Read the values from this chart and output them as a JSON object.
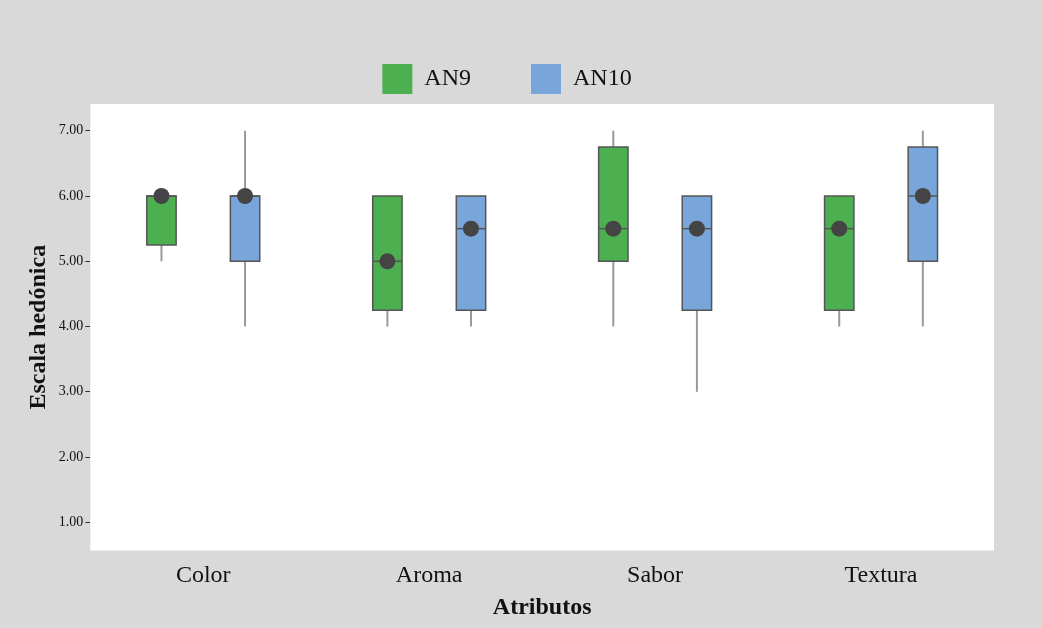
{
  "chart_data": {
    "type": "box",
    "xlabel": "Atributos",
    "ylabel": "Escala hedónica",
    "categories": [
      "Color",
      "Aroma",
      "Sabor",
      "Textura"
    ],
    "ylim": [
      0.57,
      7.41
    ],
    "yticks": [
      {
        "value": 1,
        "label": "1.00"
      },
      {
        "value": 2,
        "label": "2.00"
      },
      {
        "value": 3,
        "label": "3.00"
      },
      {
        "value": 4,
        "label": "4.00"
      },
      {
        "value": 5,
        "label": "5.00"
      },
      {
        "value": 6,
        "label": "6.00"
      },
      {
        "value": 7,
        "label": "7.00"
      }
    ],
    "legend": "top",
    "marker": "circle",
    "grid": false,
    "series": [
      {
        "name": "AN9",
        "color": "#4caf50",
        "boxes": [
          {
            "low": 5,
            "q1": 5.25,
            "median": 6,
            "q3": 6,
            "high": 6
          },
          {
            "low": 4,
            "q1": 4.25,
            "median": 5,
            "q3": 6,
            "high": 6
          },
          {
            "low": 4,
            "q1": 5,
            "median": 5.5,
            "q3": 6.75,
            "high": 7
          },
          {
            "low": 4,
            "q1": 4.25,
            "median": 5.5,
            "q3": 6,
            "high": 6
          }
        ]
      },
      {
        "name": "AN10",
        "color": "#78a5da",
        "boxes": [
          {
            "low": 4,
            "q1": 5,
            "median": 6,
            "q3": 6,
            "high": 7
          },
          {
            "low": 4,
            "q1": 4.25,
            "median": 5.5,
            "q3": 6,
            "high": 6
          },
          {
            "low": 3,
            "q1": 4.25,
            "median": 5.5,
            "q3": 6,
            "high": 6
          },
          {
            "low": 4,
            "q1": 5,
            "median": 6,
            "q3": 6.75,
            "high": 7
          }
        ]
      },
      {
        "type": "scatter",
        "color": "#444444",
        "x": [
          "Color",
          "Aroma",
          "Sabor",
          "Textura"
        ],
        "values": [
          6,
          5,
          5.5,
          5.5
        ]
      },
      {
        "type": "scatter",
        "color": "#444444",
        "x": [
          "Color",
          "Aroma",
          "Sabor",
          "Textura"
        ],
        "values": [
          6,
          5.5,
          5.5,
          6
        ]
      }
    ]
  }
}
